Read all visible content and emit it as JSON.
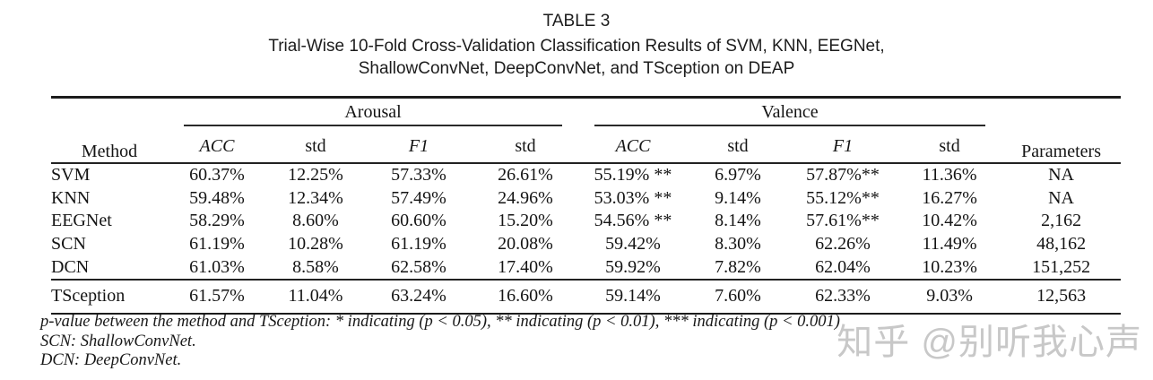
{
  "title": {
    "label": "TABLE 3",
    "caption_lines": [
      "Trial-Wise 10-Fold Cross-Validation Classification Results of SVM, KNN, EEGNet,",
      "ShallowConvNet, DeepConvNet, and TSception on DEAP"
    ]
  },
  "table": {
    "headers": {
      "method": "Method",
      "groups": [
        {
          "label": "Arousal",
          "columns": [
            "ACC",
            "std",
            "F1",
            "std"
          ]
        },
        {
          "label": "Valence",
          "columns": [
            "ACC",
            "std",
            "F1",
            "std"
          ]
        }
      ],
      "parameters": "Parameters"
    },
    "rows": [
      {
        "method": "SVM",
        "cells": [
          "60.37%",
          "12.25%",
          "57.33%",
          "26.61%",
          "55.19% **",
          "6.97%",
          "57.87%**",
          "11.36%",
          "NA"
        ],
        "bold_cells": [],
        "bold_method": false,
        "emphasized": false
      },
      {
        "method": "KNN",
        "cells": [
          "59.48%",
          "12.34%",
          "57.49%",
          "24.96%",
          "53.03% **",
          "9.14%",
          "55.12%**",
          "16.27%",
          "NA"
        ],
        "bold_cells": [],
        "bold_method": false,
        "emphasized": false
      },
      {
        "method": "EEGNet",
        "cells": [
          "58.29%",
          "8.60%",
          "60.60%",
          "15.20%",
          "54.56% **",
          "8.14%",
          "57.61%**",
          "10.42%",
          "2,162"
        ],
        "bold_cells": [],
        "bold_method": false,
        "emphasized": false
      },
      {
        "method": "SCN",
        "cells": [
          "61.19%",
          "10.28%",
          "61.19%",
          "20.08%",
          "59.42%",
          "8.30%",
          "62.26%",
          "11.49%",
          "48,162"
        ],
        "bold_cells": [],
        "bold_method": false,
        "emphasized": false
      },
      {
        "method": "DCN",
        "cells": [
          "61.03%",
          "8.58%",
          "62.58%",
          "17.40%",
          "59.92%",
          "7.82%",
          "62.04%",
          "10.23%",
          "151,252"
        ],
        "bold_cells": [
          4
        ],
        "bold_method": false,
        "emphasized": false
      },
      {
        "method": "TSception",
        "cells": [
          "61.57%",
          "11.04%",
          "63.24%",
          "16.60%",
          "59.14%",
          "7.60%",
          "62.33%",
          "9.03%",
          "12,563"
        ],
        "bold_cells": [
          0,
          2,
          4,
          6,
          8
        ],
        "bold_method": true,
        "emphasized": true
      }
    ]
  },
  "footnotes": [
    "p-value between the method and TSception: * indicating (p < 0.05), ** indicating (p < 0.01), *** indicating (p < 0.001)",
    "SCN: ShallowConvNet.",
    "DCN: DeepConvNet."
  ],
  "watermark": {
    "text": "知乎 @别听我心声",
    "color": "#c8c8c8"
  }
}
